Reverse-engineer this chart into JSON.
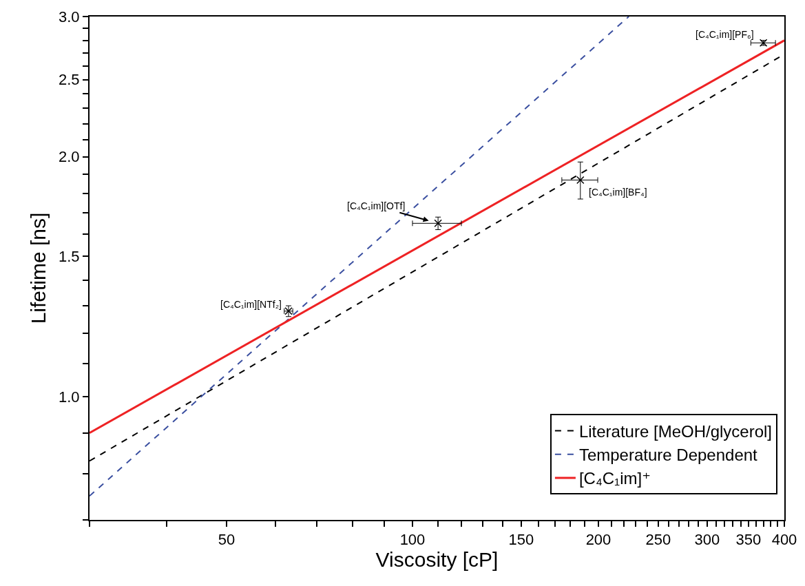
{
  "chart_data": {
    "type": "line",
    "xlabel": "Viscosity [cP]",
    "ylabel": "Lifetime [ns]",
    "log": "xy",
    "grid": false,
    "legend": "bottom right",
    "xlim": [
      30,
      400
    ],
    "ylim": [
      0.7,
      3.0
    ],
    "xticks": [
      {
        "value": 30,
        "label": null
      },
      {
        "value": 40,
        "label": null
      },
      50,
      {
        "value": 60,
        "label": null
      },
      {
        "value": 70,
        "label": null
      },
      {
        "value": 80,
        "label": null
      },
      {
        "value": 90,
        "label": null
      },
      100,
      {
        "value": 110,
        "label": null
      },
      {
        "value": 120,
        "label": null
      },
      {
        "value": 130,
        "label": null
      },
      {
        "value": 140,
        "label": null
      },
      150,
      {
        "value": 160,
        "label": null
      },
      {
        "value": 170,
        "label": null
      },
      {
        "value": 180,
        "label": null
      },
      {
        "value": 190,
        "label": null
      },
      200,
      {
        "value": 210,
        "label": null
      },
      {
        "value": 220,
        "label": null
      },
      {
        "value": 230,
        "label": null
      },
      {
        "value": 240,
        "label": null
      },
      250,
      {
        "value": 260,
        "label": null
      },
      {
        "value": 270,
        "label": null
      },
      {
        "value": 280,
        "label": null
      },
      {
        "value": 290,
        "label": null
      },
      300,
      {
        "value": 310,
        "label": null
      },
      {
        "value": 320,
        "label": null
      },
      {
        "value": 330,
        "label": null
      },
      {
        "value": 340,
        "label": null
      },
      350,
      {
        "value": 360,
        "label": null
      },
      {
        "value": 370,
        "label": null
      },
      {
        "value": 380,
        "label": null
      },
      {
        "value": 390,
        "label": null
      },
      400
    ],
    "yticks": [
      {
        "value": 0.7,
        "label": null
      },
      {
        "value": 0.8,
        "label": null
      },
      {
        "value": 0.9,
        "label": null
      },
      {
        "value": 1.0,
        "label": "1.0"
      },
      {
        "value": 1.1,
        "label": null
      },
      {
        "value": 1.2,
        "label": null
      },
      {
        "value": 1.3,
        "label": null
      },
      {
        "value": 1.4,
        "label": null
      },
      1.5,
      {
        "value": 1.6,
        "label": null
      },
      {
        "value": 1.7,
        "label": null
      },
      {
        "value": 1.8,
        "label": null
      },
      {
        "value": 1.9,
        "label": null
      },
      {
        "value": 2.0,
        "label": "2.0"
      },
      {
        "value": 2.1,
        "label": null
      },
      {
        "value": 2.2,
        "label": null
      },
      {
        "value": 2.3,
        "label": null
      },
      {
        "value": 2.4,
        "label": null
      },
      2.5,
      {
        "value": 2.6,
        "label": null
      },
      {
        "value": 2.7,
        "label": null
      },
      {
        "value": 2.8,
        "label": null
      },
      {
        "value": 2.9,
        "label": null
      },
      {
        "value": 3.0,
        "label": "3.0"
      }
    ],
    "series": [
      {
        "name": "Literature [MeOH/glycerol]",
        "color": "#000000",
        "line_style": "dashed",
        "marker": "none",
        "x": [
          30,
          400
        ],
        "values": [
          0.83,
          2.69
        ]
      },
      {
        "name": "Temperature Dependent",
        "color": "#3a4fa0",
        "line_style": "dashed",
        "marker": "none",
        "x": [
          30,
          224
        ],
        "values": [
          0.75,
          3.0
        ]
      },
      {
        "name": "[C₄C₁im]⁺",
        "color": "#ee2224",
        "line_style": "solid",
        "marker": "none",
        "x": [
          30,
          400
        ],
        "values": [
          0.9,
          2.8
        ]
      },
      {
        "type": "scatter",
        "color": "#000000",
        "marker": "cross",
        "x": [
          63,
          110,
          187,
          370
        ],
        "values": [
          1.28,
          1.65,
          1.87,
          2.78
        ],
        "errors": [
          0.02,
          0.03,
          0.1,
          0.02
        ],
        "xerrors": [
          1,
          10,
          12.5,
          17
        ]
      }
    ],
    "annotations": [
      {
        "text": "[C₄C₁im][NTf₂]",
        "x": 63,
        "y": 1.28
      },
      {
        "text": "[C₄C₁im][OTf]",
        "x": 110,
        "y": 1.65
      },
      {
        "text": "[C₄C₁im][BF₄]",
        "x": 187,
        "y": 1.87
      },
      {
        "text": "[C₄C₁im][PF₆]",
        "x": 370,
        "y": 2.78
      }
    ]
  }
}
